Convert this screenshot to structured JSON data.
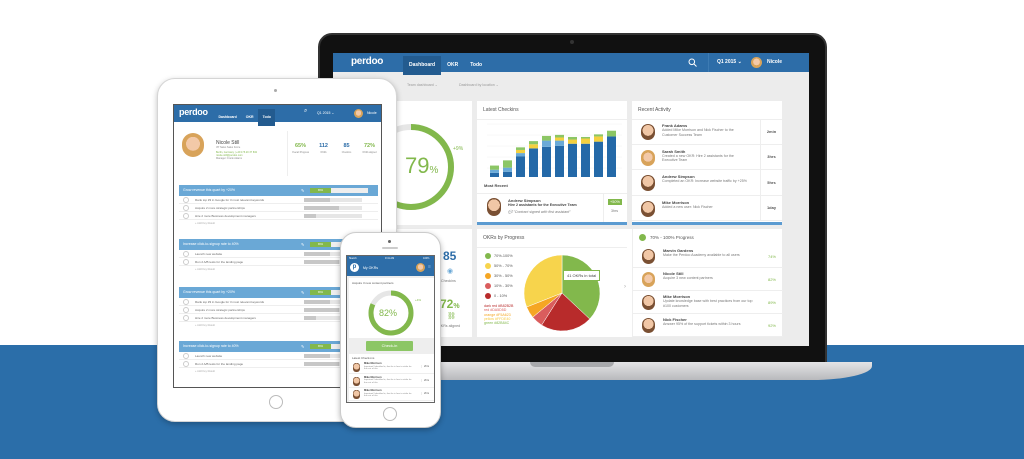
{
  "brand": "perdoo",
  "colors": {
    "primary": "#2d6da8",
    "band": "#2b6ea9",
    "green": "#82b84c",
    "checkin_bar": "#5b9bd1"
  },
  "laptop": {
    "nav": {
      "tabs": [
        {
          "label": "Dashboard",
          "active": true
        },
        {
          "label": "OKR"
        },
        {
          "label": "Todo"
        }
      ],
      "quarter": "Q1 2015",
      "user": "Nicole",
      "search_icon": "search-icon"
    },
    "subnav": [
      "Team dashboard",
      "Dashboard by location"
    ],
    "gauge": {
      "value": "79",
      "unit": "%",
      "delta": "+9%",
      "progress": 0.79
    },
    "stats": [
      {
        "value": "85",
        "label": "Checkins"
      },
      {
        "value": "72",
        "unit": "%",
        "label": "OKRs aligned"
      }
    ],
    "latest_checkins": {
      "title": "Latest Checkins",
      "most_recent_label": "Most Recent",
      "chart_colors": [
        "#2469a8",
        "#6aaad8",
        "#f4d03f",
        "#8cc665"
      ],
      "bars": [
        [
          8,
          6,
          0,
          8
        ],
        [
          10,
          8,
          0,
          14
        ],
        [
          40,
          6,
          6,
          5
        ],
        [
          55,
          0,
          8,
          6
        ],
        [
          58,
          12,
          0,
          9
        ],
        [
          60,
          10,
          6,
          5
        ],
        [
          64,
          0,
          8,
          5
        ],
        [
          64,
          0,
          10,
          3
        ],
        [
          68,
          0,
          10,
          4
        ],
        [
          78,
          0,
          0,
          11
        ]
      ],
      "entry": {
        "name": "Andrew Simpson",
        "text": "Hire 2 assistants for the Executive Team",
        "comment": "\"Contract signed with first assistant\"",
        "badge": "+50%",
        "time": "3hrs"
      }
    },
    "recent_activity": {
      "title": "Recent Activity",
      "items": [
        {
          "name": "Frank Adams",
          "text": "Added Mike Morrison and Nick Fischer to the Customer Success Team",
          "time": "2min",
          "f": false
        },
        {
          "name": "Sarah Smith",
          "text": "Created a new OKR: Hire 2 assistants for the Executive Team",
          "time": "3hrs",
          "f": true
        },
        {
          "name": "Andrew Simpson",
          "text": "Completed an OKR: Increase website traffic by +25%",
          "time": "5hrs",
          "f": false
        },
        {
          "name": "Mike Morrison",
          "text": "Added a new user: Nick Fischer",
          "time": "1day",
          "f": false
        }
      ]
    },
    "okrs_by_progress": {
      "title": "OKRs by Progress",
      "tooltip": "41 OKRs in total",
      "legend": [
        {
          "label": "70%-100%",
          "color": "#82b84c"
        },
        {
          "label": "50% - 70%",
          "color": "#f7d44c"
        },
        {
          "label": "30% - 50%",
          "color": "#f5a623"
        },
        {
          "label": "10% - 30%",
          "color": "#da5d5d"
        },
        {
          "label": "0 - 10%",
          "color": "#b82b2b"
        }
      ],
      "color_notes": [
        {
          "text": "dark red #B82B2B",
          "color": "#b82b2b"
        },
        {
          "text": "red #DA5D5D",
          "color": "#da5d5d"
        },
        {
          "text": "orange #F5A623",
          "color": "#f5a623"
        },
        {
          "text": "yellow #FFDE40",
          "color": "#f5c842"
        },
        {
          "text": "green #82B84C",
          "color": "#82b84c"
        }
      ]
    },
    "chart_data": {
      "type": "pie",
      "categories": [
        "70%-100%",
        "50% - 70%",
        "30% - 50%",
        "10% - 30%",
        "0 - 10%"
      ],
      "values": [
        37,
        31,
        5,
        5,
        22
      ],
      "annotation": "41 OKRs in total"
    },
    "progress_list": {
      "title": "70% - 100% Progress",
      "items": [
        {
          "name": "Marvin Gardens",
          "text": "Make the Perdoo Academy available to all users",
          "pct": "74%",
          "f": false
        },
        {
          "name": "Nicole Still",
          "text": "Acquire 3 new content partners",
          "pct": "82%",
          "f": true
        },
        {
          "name": "Mike Morrison",
          "text": "Update knowledge base with best practices from our top #100 customers",
          "pct": "89%",
          "f": false
        },
        {
          "name": "Nick Fischer",
          "text": "Answer 95% of the support tickets within 3 hours",
          "pct": "92%",
          "f": false
        }
      ]
    }
  },
  "tablet": {
    "nav": {
      "tabs": [
        {
          "label": "Dashboard"
        },
        {
          "label": "OKR"
        },
        {
          "label": "Todo",
          "active": true
        }
      ],
      "quarter": "Q1 2015",
      "user": "Nicole"
    },
    "profile": {
      "name": "Nicole Still",
      "role": "VP Sales Sales Force",
      "details": "Berlin, Germany | +49 176 20 37 832",
      "email": "nicole.still@perdoo.com",
      "manager": "Manager: Frank Adams"
    },
    "stats": [
      {
        "value": "65%",
        "label": "Overall Progress",
        "color": "#82b84c"
      },
      {
        "value": "112",
        "label": "OKRs",
        "color": "#2d6da8"
      },
      {
        "value": "85",
        "label": "Checkins",
        "color": "#2d6da8"
      },
      {
        "value": "72%",
        "label": "OKRs aligned",
        "color": "#82b84c"
      }
    ],
    "add_label": "+ Add Key Result",
    "sections": [
      {
        "title": "Grow revenue this quart by +20%",
        "progress": "36%",
        "krs": [
          {
            "t": "Rank top #3 in Google for 3 most relevant keywords",
            "p": 0.45
          },
          {
            "t": "Acquire 2 more strategic partnerships",
            "p": 0.6
          },
          {
            "t": "Hire 2 more Business development managers",
            "p": 0.2
          }
        ]
      },
      {
        "title": "Increase click-to-signup rate to 40%",
        "progress": "36%",
        "krs": [
          {
            "t": "Launch new website",
            "p": 0.45
          },
          {
            "t": "Run 2 A/B tests for the landing page",
            "p": 0.6
          }
        ]
      },
      {
        "title": "Grow revenue this quart by +20%",
        "progress": "36%",
        "krs": [
          {
            "t": "Rank top #3 in Google for 3 most relevant keywords",
            "p": 0.45
          },
          {
            "t": "Acquire 2 more strategic partnerships",
            "p": 0.6
          },
          {
            "t": "Hire 2 more Business development managers",
            "p": 0.2
          }
        ]
      },
      {
        "title": "Increase click-to-signup rate to 40%",
        "progress": "36%",
        "krs": [
          {
            "t": "Launch new website",
            "p": 0.45
          },
          {
            "t": "Run 2 A/B tests for the landing page",
            "p": 0.6
          }
        ]
      }
    ]
  },
  "phone": {
    "status": {
      "carrier": "Sketch",
      "time": "9:41 AM",
      "battery": "100%"
    },
    "title": "My OKRs",
    "okr": "Acquire 3 new content partners",
    "gauge": {
      "value": "82%",
      "delta": "+4%",
      "progress": 0.82
    },
    "checkin_button": "Check-in",
    "latest_label": "Latest Check-ins",
    "checkins": [
      {
        "name": "Mike Morrison",
        "text": "Important! Identified is, that he is free to strike for the rest of this",
        "time": "2hrs"
      },
      {
        "name": "Mike Morrison",
        "text": "Important! Identified is, that he is free to strike for the rest of this",
        "time": "2hrs"
      },
      {
        "name": "Mike Morrison",
        "text": "Important! Identified is, that he is free to strike for the rest of this",
        "time": "2hrs"
      }
    ]
  }
}
